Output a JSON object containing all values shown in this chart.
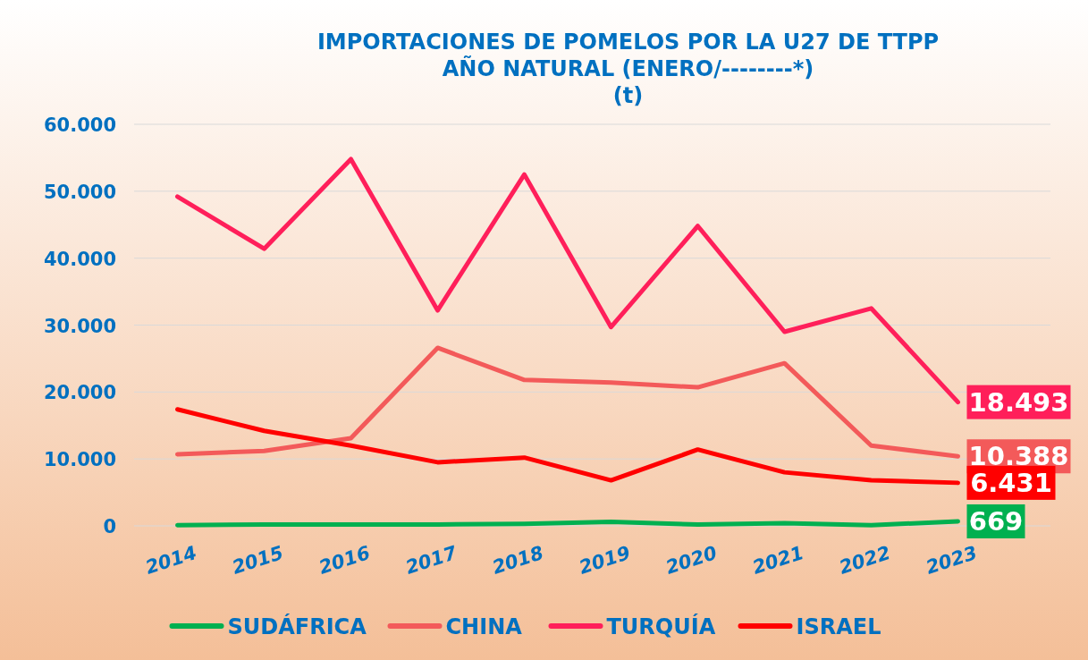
{
  "chart_data": {
    "type": "line",
    "title": "IMPORTACIONES DE POMELOS POR LA U27 DE TTPP\nAÑO NATURAL (ENERO/--------*)\n(t)",
    "categories": [
      "2014",
      "2015",
      "2016",
      "2017",
      "2018",
      "2019",
      "2020",
      "2021",
      "2022",
      "2023"
    ],
    "series": [
      {
        "name": "SUDÁFRICA",
        "color": "#00b050",
        "values": [
          100,
          200,
          200,
          200,
          300,
          600,
          200,
          400,
          100,
          669
        ],
        "value_labels": [
          null,
          null,
          null,
          null,
          null,
          null,
          null,
          null,
          null,
          "669"
        ]
      },
      {
        "name": "CHINA",
        "color": "#f35a5a",
        "values": [
          10700,
          11200,
          13100,
          26600,
          21800,
          21400,
          20700,
          24300,
          12000,
          10388
        ],
        "value_labels": [
          null,
          null,
          null,
          null,
          null,
          null,
          null,
          null,
          null,
          "10.388"
        ]
      },
      {
        "name": "TURQUÍA",
        "color": "#ff1f5a",
        "values": [
          49200,
          41400,
          54800,
          32200,
          52500,
          29700,
          44800,
          29000,
          32500,
          18493
        ],
        "value_labels": [
          null,
          null,
          null,
          null,
          null,
          null,
          null,
          null,
          null,
          "18.493"
        ]
      },
      {
        "name": "ISRAEL",
        "color": "#ff0000",
        "values": [
          17400,
          14200,
          12000,
          9500,
          10200,
          6800,
          11400,
          8000,
          6800,
          6431
        ],
        "value_labels": [
          null,
          null,
          null,
          null,
          null,
          null,
          null,
          null,
          null,
          "6.431"
        ]
      }
    ],
    "ylim": [
      0,
      60000
    ],
    "yticks": [
      {
        "value": 0,
        "label": "0"
      },
      {
        "value": 10000,
        "label": "10.000"
      },
      {
        "value": 20000,
        "label": "20.000"
      },
      {
        "value": 30000,
        "label": "30.000"
      },
      {
        "value": 40000,
        "label": "40.000"
      },
      {
        "value": 50000,
        "label": "50.000"
      },
      {
        "value": 60000,
        "label": "60.000"
      }
    ],
    "grid": "y",
    "legend": "bottom",
    "marker": "none",
    "line_style": "solid"
  }
}
